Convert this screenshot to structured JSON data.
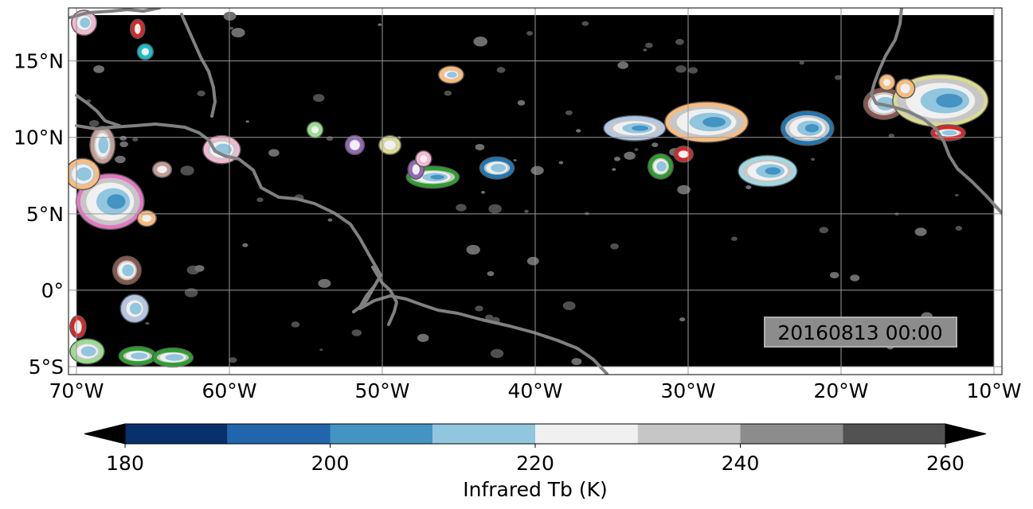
{
  "map": {
    "timestamp": "20160813 00:00",
    "lon_range": [
      -70,
      -10
    ],
    "lat_range": [
      -5,
      18
    ],
    "lon_ticks": [
      {
        "value": -70,
        "label": "70°W"
      },
      {
        "value": -60,
        "label": "60°W"
      },
      {
        "value": -50,
        "label": "50°W"
      },
      {
        "value": -40,
        "label": "40°W"
      },
      {
        "value": -30,
        "label": "30°W"
      },
      {
        "value": -20,
        "label": "20°W"
      },
      {
        "value": -10,
        "label": "10°W"
      }
    ],
    "lat_ticks": [
      {
        "value": 15,
        "label": "15°N"
      },
      {
        "value": 10,
        "label": "10°N"
      },
      {
        "value": 5,
        "label": "5°N"
      },
      {
        "value": 0,
        "label": "0°"
      },
      {
        "value": -5,
        "label": "5°S"
      }
    ],
    "background_color": "#000000",
    "coastline_color": "#808080",
    "gridline_color": "#9a9a9a"
  },
  "colorbar": {
    "label": "Infrared Tb (K)",
    "ticks": [
      180,
      200,
      220,
      240,
      260
    ],
    "levels": [
      180,
      190,
      200,
      210,
      220,
      230,
      240,
      250,
      260
    ],
    "colors": [
      "#08306b",
      "#2166ac",
      "#4393c3",
      "#92c5de",
      "#f0f0f0",
      "#c6c6c6",
      "#8c8c8c",
      "#525252"
    ],
    "extend_min_color": "#000000",
    "extend_max_color": "#000000"
  },
  "systems": [
    {
      "lon": -33.5,
      "lat": 10.6,
      "rx": 1.8,
      "ry": 0.6,
      "outline": "#aec7e8"
    },
    {
      "lon": -28.8,
      "lat": 11.0,
      "rx": 2.5,
      "ry": 1.1,
      "outline": "#ffbb78"
    },
    {
      "lon": -22.2,
      "lat": 10.6,
      "rx": 1.5,
      "ry": 0.9,
      "outline": "#1f77b4"
    },
    {
      "lon": -24.8,
      "lat": 7.8,
      "rx": 1.7,
      "ry": 0.8,
      "outline": "#9edae5"
    },
    {
      "lon": -31.8,
      "lat": 8.1,
      "rx": 0.6,
      "ry": 0.6,
      "outline": "#2ca02c"
    },
    {
      "lon": -30.3,
      "lat": 8.9,
      "rx": 0.4,
      "ry": 0.3,
      "outline": "#d62728"
    },
    {
      "lon": -17.2,
      "lat": 12.2,
      "rx": 1.1,
      "ry": 0.8,
      "outline": "#8c564b"
    },
    {
      "lon": -13.5,
      "lat": 12.4,
      "rx": 2.9,
      "ry": 1.5,
      "outline": "#dbdb8d"
    },
    {
      "lon": -13.0,
      "lat": 10.3,
      "rx": 0.9,
      "ry": 0.3,
      "outline": "#d62728"
    },
    {
      "lon": -15.8,
      "lat": 13.2,
      "rx": 0.4,
      "ry": 0.4,
      "outline": "#ffbb78"
    },
    {
      "lon": -17.0,
      "lat": 13.6,
      "rx": 0.3,
      "ry": 0.3,
      "outline": "#ffbb78"
    },
    {
      "lon": -46.7,
      "lat": 7.4,
      "rx": 1.5,
      "ry": 0.5,
      "outline": "#2ca02c"
    },
    {
      "lon": -42.5,
      "lat": 8.0,
      "rx": 0.9,
      "ry": 0.5,
      "outline": "#1f77b4"
    },
    {
      "lon": -49.5,
      "lat": 9.5,
      "rx": 0.5,
      "ry": 0.4,
      "outline": "#dbdb8d"
    },
    {
      "lon": -51.8,
      "lat": 9.5,
      "rx": 0.4,
      "ry": 0.4,
      "outline": "#9467bd"
    },
    {
      "lon": -47.8,
      "lat": 7.9,
      "rx": 0.3,
      "ry": 0.4,
      "outline": "#9467bd"
    },
    {
      "lon": -47.3,
      "lat": 8.6,
      "rx": 0.3,
      "ry": 0.3,
      "outline": "#f7b6d2"
    },
    {
      "lon": -54.4,
      "lat": 10.5,
      "rx": 0.3,
      "ry": 0.3,
      "outline": "#98df8a"
    },
    {
      "lon": -45.5,
      "lat": 14.1,
      "rx": 0.6,
      "ry": 0.35,
      "outline": "#ffbb78"
    },
    {
      "lon": -60.5,
      "lat": 9.2,
      "rx": 1.0,
      "ry": 0.7,
      "outline": "#f7b6d2"
    },
    {
      "lon": -67.8,
      "lat": 5.8,
      "rx": 2.0,
      "ry": 1.6,
      "outline": "#e377c2"
    },
    {
      "lon": -69.6,
      "lat": 7.6,
      "rx": 0.9,
      "ry": 0.8,
      "outline": "#ffbb78"
    },
    {
      "lon": -68.3,
      "lat": 9.5,
      "rx": 0.6,
      "ry": 1.0,
      "outline": "#c49c94"
    },
    {
      "lon": -66.7,
      "lat": 1.3,
      "rx": 0.7,
      "ry": 0.7,
      "outline": "#8c564b"
    },
    {
      "lon": -66.2,
      "lat": -1.2,
      "rx": 0.7,
      "ry": 0.7,
      "outline": "#aec7e8"
    },
    {
      "lon": -64.4,
      "lat": 7.9,
      "rx": 0.4,
      "ry": 0.3,
      "outline": "#c49c94"
    },
    {
      "lon": -65.4,
      "lat": 4.7,
      "rx": 0.4,
      "ry": 0.3,
      "outline": "#ffbb78"
    },
    {
      "lon": -66.0,
      "lat": -4.3,
      "rx": 1.0,
      "ry": 0.4,
      "outline": "#2ca02c"
    },
    {
      "lon": -63.7,
      "lat": -4.4,
      "rx": 1.1,
      "ry": 0.4,
      "outline": "#2ca02c"
    },
    {
      "lon": -69.3,
      "lat": -4.0,
      "rx": 0.9,
      "ry": 0.6,
      "outline": "#98df8a"
    },
    {
      "lon": -69.9,
      "lat": -2.4,
      "rx": 0.3,
      "ry": 0.5,
      "outline": "#d62728"
    },
    {
      "lon": -66.0,
      "lat": 17.1,
      "rx": 0.25,
      "ry": 0.4,
      "outline": "#d62728"
    },
    {
      "lon": -65.5,
      "lat": 15.6,
      "rx": 0.3,
      "ry": 0.3,
      "outline": "#17becf"
    },
    {
      "lon": -69.5,
      "lat": 17.5,
      "rx": 0.6,
      "ry": 0.6,
      "outline": "#f7b6d2"
    }
  ]
}
